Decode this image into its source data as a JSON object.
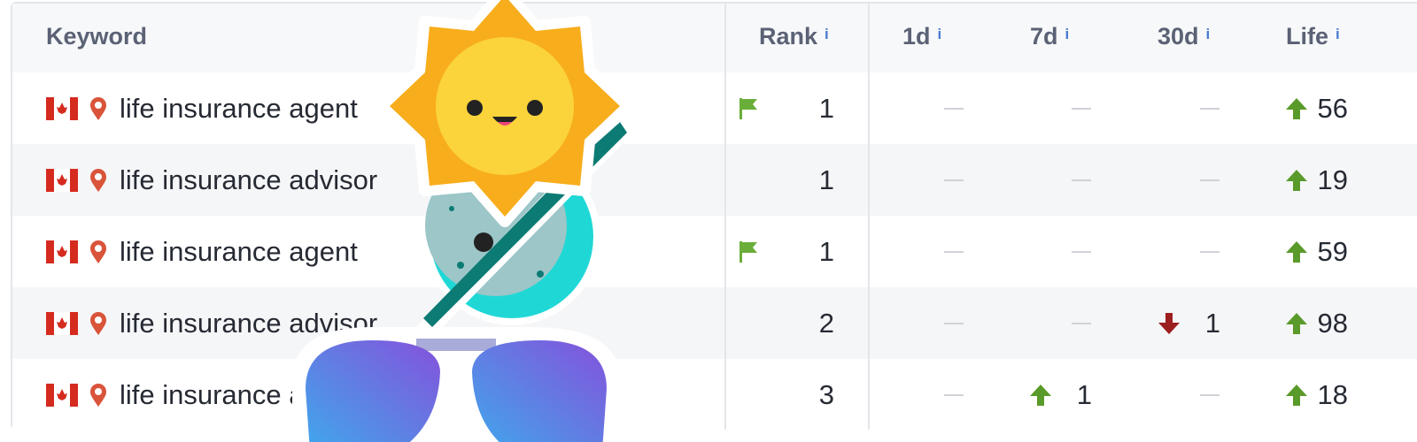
{
  "table": {
    "headers": [
      "Keyword",
      "Rank",
      "1d",
      "7d",
      "30d",
      "Life"
    ],
    "info_mark": "i",
    "rows": [
      {
        "keyword": "life insurance agent",
        "flag": true,
        "rank": 1,
        "d1": null,
        "d7": null,
        "d30": null,
        "life": {
          "value": 56,
          "trend": "up"
        }
      },
      {
        "keyword": "life insurance advisor",
        "flag": false,
        "rank": 1,
        "d1": null,
        "d7": null,
        "d30": null,
        "life": {
          "value": 19,
          "trend": "up"
        }
      },
      {
        "keyword": "life insurance agent",
        "flag": true,
        "rank": 1,
        "d1": null,
        "d7": null,
        "d30": null,
        "life": {
          "value": 59,
          "trend": "up"
        }
      },
      {
        "keyword": "life insurance advisor",
        "flag": false,
        "rank": 2,
        "d1": null,
        "d7": null,
        "d30": {
          "value": 1,
          "trend": "down"
        },
        "life": {
          "value": 98,
          "trend": "up"
        }
      },
      {
        "keyword": "life insurance agent",
        "flag": false,
        "rank": 3,
        "d1": null,
        "d7": {
          "value": 1,
          "trend": "up"
        },
        "d30": null,
        "life": {
          "value": 18,
          "trend": "up"
        }
      }
    ]
  }
}
